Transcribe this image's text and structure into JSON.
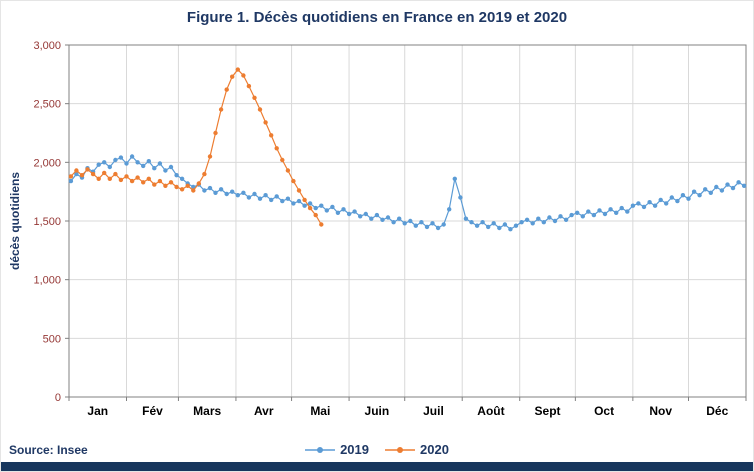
{
  "chart_data": {
    "type": "line",
    "title": "Figure 1. Décès quotidiens en France en 2019 et 2020",
    "ylabel": "décès quotidiens",
    "source": "Source: Insee",
    "grid": true,
    "legend_position": "bottom",
    "ylim": [
      0,
      3000
    ],
    "x_total_days": 365,
    "y_ticks": [
      {
        "value": 0,
        "label": "0"
      },
      {
        "value": 500,
        "label": "500"
      },
      {
        "value": 1000,
        "label": "1,000"
      },
      {
        "value": 1500,
        "label": "1,500"
      },
      {
        "value": 2000,
        "label": "2,000"
      },
      {
        "value": 2500,
        "label": "2,500"
      },
      {
        "value": 3000,
        "label": "3,000"
      }
    ],
    "x_month_labels": [
      "Jan",
      "Fév",
      "Mars",
      "Avr",
      "Mai",
      "Juin",
      "Juil",
      "Août",
      "Sept",
      "Oct",
      "Nov",
      "Déc"
    ],
    "x_month_boundaries": [
      0,
      31,
      59,
      90,
      120,
      151,
      181,
      212,
      243,
      273,
      304,
      334,
      365
    ],
    "series": [
      {
        "name": "2019",
        "color": "#5B9BD5",
        "points": [
          [
            1,
            1840
          ],
          [
            4,
            1900
          ],
          [
            7,
            1870
          ],
          [
            10,
            1950
          ],
          [
            13,
            1920
          ],
          [
            16,
            1980
          ],
          [
            19,
            2000
          ],
          [
            22,
            1960
          ],
          [
            25,
            2020
          ],
          [
            28,
            2040
          ],
          [
            31,
            1990
          ],
          [
            34,
            2050
          ],
          [
            37,
            2000
          ],
          [
            40,
            1970
          ],
          [
            43,
            2010
          ],
          [
            46,
            1950
          ],
          [
            49,
            1990
          ],
          [
            52,
            1930
          ],
          [
            55,
            1960
          ],
          [
            58,
            1890
          ],
          [
            61,
            1860
          ],
          [
            64,
            1820
          ],
          [
            67,
            1790
          ],
          [
            70,
            1810
          ],
          [
            73,
            1760
          ],
          [
            76,
            1780
          ],
          [
            79,
            1740
          ],
          [
            82,
            1770
          ],
          [
            85,
            1730
          ],
          [
            88,
            1750
          ],
          [
            91,
            1720
          ],
          [
            94,
            1740
          ],
          [
            97,
            1700
          ],
          [
            100,
            1730
          ],
          [
            103,
            1690
          ],
          [
            106,
            1720
          ],
          [
            109,
            1680
          ],
          [
            112,
            1710
          ],
          [
            115,
            1670
          ],
          [
            118,
            1690
          ],
          [
            121,
            1650
          ],
          [
            124,
            1670
          ],
          [
            127,
            1630
          ],
          [
            130,
            1650
          ],
          [
            133,
            1610
          ],
          [
            136,
            1630
          ],
          [
            139,
            1590
          ],
          [
            142,
            1620
          ],
          [
            145,
            1570
          ],
          [
            148,
            1600
          ],
          [
            151,
            1560
          ],
          [
            154,
            1580
          ],
          [
            157,
            1540
          ],
          [
            160,
            1560
          ],
          [
            163,
            1520
          ],
          [
            166,
            1550
          ],
          [
            169,
            1510
          ],
          [
            172,
            1530
          ],
          [
            175,
            1490
          ],
          [
            178,
            1520
          ],
          [
            181,
            1480
          ],
          [
            184,
            1500
          ],
          [
            187,
            1460
          ],
          [
            190,
            1490
          ],
          [
            193,
            1450
          ],
          [
            196,
            1480
          ],
          [
            199,
            1440
          ],
          [
            202,
            1470
          ],
          [
            205,
            1600
          ],
          [
            208,
            1860
          ],
          [
            211,
            1700
          ],
          [
            214,
            1520
          ],
          [
            217,
            1490
          ],
          [
            220,
            1460
          ],
          [
            223,
            1490
          ],
          [
            226,
            1450
          ],
          [
            229,
            1480
          ],
          [
            232,
            1440
          ],
          [
            235,
            1470
          ],
          [
            238,
            1430
          ],
          [
            241,
            1460
          ],
          [
            244,
            1490
          ],
          [
            247,
            1510
          ],
          [
            250,
            1480
          ],
          [
            253,
            1520
          ],
          [
            256,
            1490
          ],
          [
            259,
            1530
          ],
          [
            262,
            1500
          ],
          [
            265,
            1540
          ],
          [
            268,
            1510
          ],
          [
            271,
            1550
          ],
          [
            274,
            1570
          ],
          [
            277,
            1540
          ],
          [
            280,
            1580
          ],
          [
            283,
            1550
          ],
          [
            286,
            1590
          ],
          [
            289,
            1560
          ],
          [
            292,
            1600
          ],
          [
            295,
            1570
          ],
          [
            298,
            1610
          ],
          [
            301,
            1580
          ],
          [
            304,
            1630
          ],
          [
            307,
            1650
          ],
          [
            310,
            1620
          ],
          [
            313,
            1660
          ],
          [
            316,
            1630
          ],
          [
            319,
            1680
          ],
          [
            322,
            1650
          ],
          [
            325,
            1700
          ],
          [
            328,
            1670
          ],
          [
            331,
            1720
          ],
          [
            334,
            1690
          ],
          [
            337,
            1750
          ],
          [
            340,
            1720
          ],
          [
            343,
            1770
          ],
          [
            346,
            1740
          ],
          [
            349,
            1790
          ],
          [
            352,
            1760
          ],
          [
            355,
            1810
          ],
          [
            358,
            1780
          ],
          [
            361,
            1830
          ],
          [
            364,
            1800
          ]
        ]
      },
      {
        "name": "2020",
        "color": "#ED7D31",
        "points": [
          [
            1,
            1880
          ],
          [
            4,
            1930
          ],
          [
            7,
            1890
          ],
          [
            10,
            1940
          ],
          [
            13,
            1900
          ],
          [
            16,
            1860
          ],
          [
            19,
            1910
          ],
          [
            22,
            1860
          ],
          [
            25,
            1900
          ],
          [
            28,
            1850
          ],
          [
            31,
            1880
          ],
          [
            34,
            1840
          ],
          [
            37,
            1870
          ],
          [
            40,
            1830
          ],
          [
            43,
            1860
          ],
          [
            46,
            1810
          ],
          [
            49,
            1840
          ],
          [
            52,
            1800
          ],
          [
            55,
            1830
          ],
          [
            58,
            1790
          ],
          [
            61,
            1770
          ],
          [
            64,
            1800
          ],
          [
            67,
            1760
          ],
          [
            70,
            1820
          ],
          [
            73,
            1900
          ],
          [
            76,
            2050
          ],
          [
            79,
            2250
          ],
          [
            82,
            2450
          ],
          [
            85,
            2620
          ],
          [
            88,
            2730
          ],
          [
            91,
            2790
          ],
          [
            94,
            2740
          ],
          [
            97,
            2650
          ],
          [
            100,
            2550
          ],
          [
            103,
            2450
          ],
          [
            106,
            2340
          ],
          [
            109,
            2230
          ],
          [
            112,
            2120
          ],
          [
            115,
            2020
          ],
          [
            118,
            1930
          ],
          [
            121,
            1840
          ],
          [
            124,
            1760
          ],
          [
            127,
            1680
          ],
          [
            130,
            1610
          ],
          [
            133,
            1550
          ],
          [
            136,
            1470
          ]
        ]
      }
    ]
  }
}
